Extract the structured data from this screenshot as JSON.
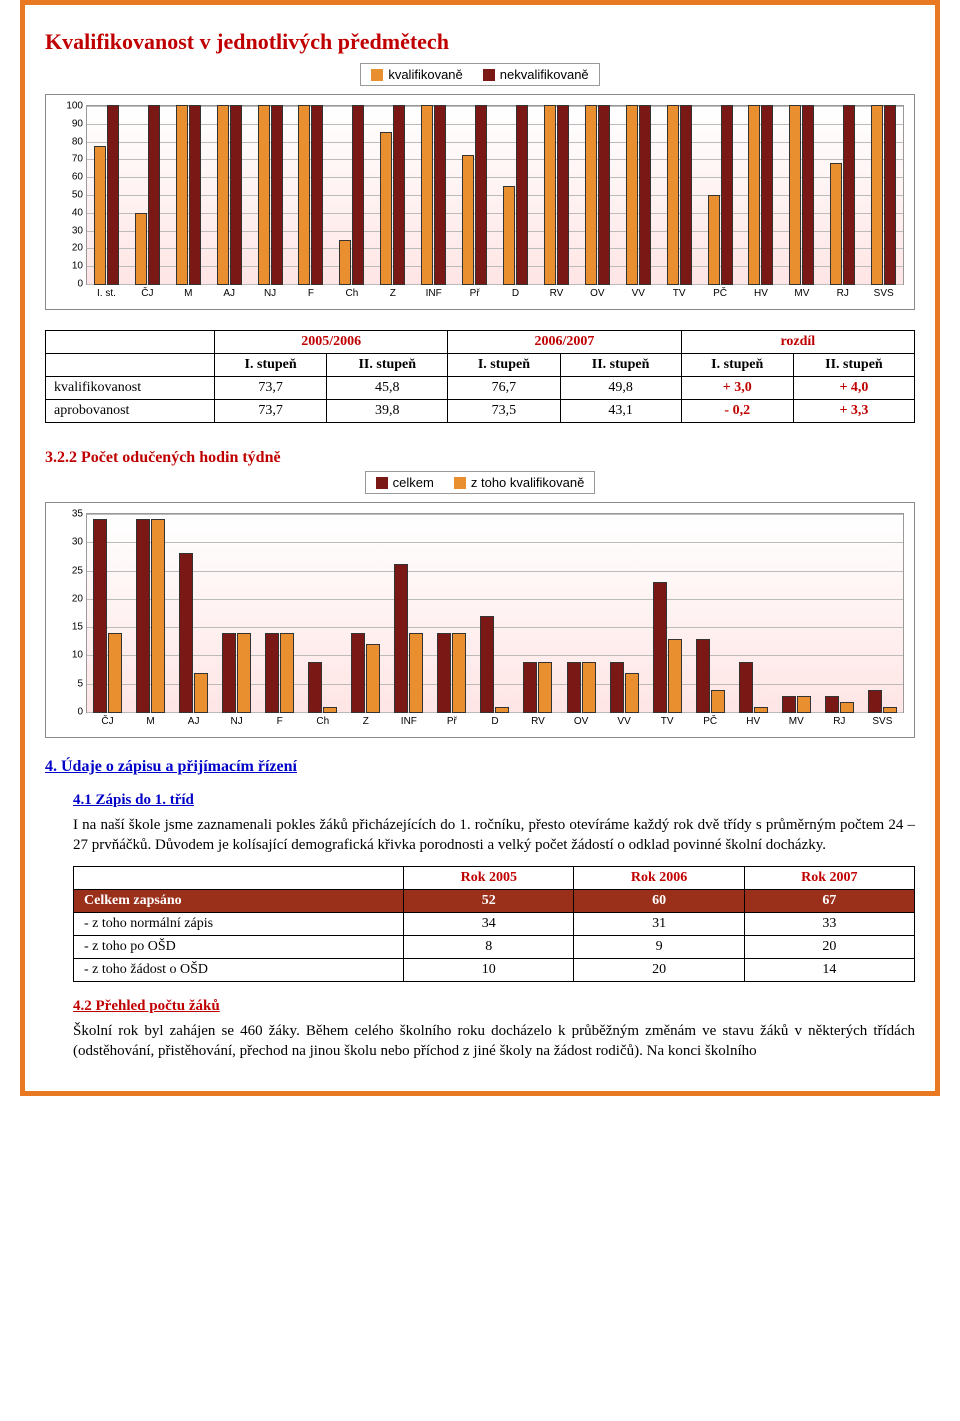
{
  "colors": {
    "orange": "#e98f2f",
    "maroon": "#7a1815",
    "frame": "#e87822"
  },
  "chart1": {
    "title": "Kvalifikovanost v jednotlivých předmětech",
    "legend": [
      "kvalifikovaně",
      "nekvalifikovaně"
    ],
    "legend_colors": [
      "#e98f2f",
      "#7a1815"
    ],
    "type": "bar-grouped",
    "ymax": 100,
    "ytick_step": 10,
    "categories": [
      "I. st.",
      "ČJ",
      "M",
      "AJ",
      "NJ",
      "F",
      "Ch",
      "Z",
      "INF",
      "Př",
      "D",
      "RV",
      "OV",
      "VV",
      "TV",
      "PČ",
      "HV",
      "MV",
      "RJ",
      "SVS"
    ],
    "series": [
      {
        "name": "kvalifikovaně",
        "color": "#e98f2f",
        "values": [
          77,
          40,
          100,
          100,
          100,
          100,
          25,
          85,
          100,
          72,
          55,
          100,
          100,
          100,
          100,
          50,
          100,
          100,
          68,
          100
        ]
      },
      {
        "name": "nekvalifikovaně",
        "color": "#7a1815",
        "values": [
          100,
          100,
          100,
          100,
          100,
          100,
          100,
          100,
          100,
          100,
          100,
          100,
          100,
          100,
          100,
          100,
          100,
          100,
          100,
          100
        ]
      }
    ],
    "axis_fontsize": 10,
    "background_gradient": [
      "#ffffff",
      "#ffe5e5"
    ]
  },
  "table1": {
    "col_headers_top": [
      "",
      "2005/2006",
      "",
      "2006/2007",
      "",
      "rozdíl",
      ""
    ],
    "col_headers_sub": [
      "",
      "I. stupeň",
      "II. stupeň",
      "I. stupeň",
      "II. stupeň",
      "I. stupeň",
      "II. stupeň"
    ],
    "rows": [
      {
        "label": "kvalifikovanost",
        "cells": [
          "73,7",
          "45,8",
          "76,7",
          "49,8",
          "+ 3,0",
          "+ 4,0"
        ]
      },
      {
        "label": "aprobovanost",
        "cells": [
          "73,7",
          "39,8",
          "73,5",
          "43,1",
          "- 0,2",
          "+ 3,3"
        ]
      }
    ]
  },
  "chart2": {
    "title": "3.2.2  Počet odučených hodin týdně",
    "legend": [
      "celkem",
      "z toho kvalifikovaně"
    ],
    "legend_colors": [
      "#7a1815",
      "#e98f2f"
    ],
    "type": "bar-grouped",
    "ymax": 35,
    "ytick_step": 5,
    "categories": [
      "ČJ",
      "M",
      "AJ",
      "NJ",
      "F",
      "Ch",
      "Z",
      "INF",
      "Př",
      "D",
      "RV",
      "OV",
      "VV",
      "TV",
      "PČ",
      "HV",
      "MV",
      "RJ",
      "SVS"
    ],
    "series": [
      {
        "name": "celkem",
        "color": "#7a1815",
        "values": [
          34,
          34,
          28,
          14,
          14,
          9,
          14,
          26,
          14,
          17,
          9,
          9,
          9,
          23,
          13,
          9,
          3,
          3,
          4
        ]
      },
      {
        "name": "z toho kvalifikovaně",
        "color": "#e98f2f",
        "values": [
          14,
          34,
          7,
          14,
          14,
          1,
          12,
          14,
          14,
          1,
          9,
          9,
          7,
          13,
          4,
          1,
          3,
          2,
          1
        ]
      }
    ],
    "axis_fontsize": 10,
    "background_gradient": [
      "#ffffff",
      "#ffe5e5"
    ]
  },
  "section4": {
    "heading": "4. Údaje o zápisu a přijímacím řízení",
    "h41": "4.1 Zápis do 1. tříd",
    "p41": "I na naší škole jsme zaznamenali pokles žáků přicházejících do 1. ročníku, přesto otevíráme každý rok dvě třídy s průměrným počtem 24 – 27 prvňáčků. Důvodem je kolísající demografická křivka porodnosti a velký počet žádostí o odklad povinné školní docházky.",
    "rok_headers": [
      "",
      "Rok 2005",
      "Rok 2006",
      "Rok 2007"
    ],
    "rok_rows": [
      {
        "label": "Celkem zapsáno",
        "cells": [
          "52",
          "60",
          "67"
        ],
        "maroon": true
      },
      {
        "label": "- z toho normální zápis",
        "cells": [
          "34",
          "31",
          "33"
        ]
      },
      {
        "label": "- z toho po OŠD",
        "cells": [
          "8",
          "9",
          "20"
        ]
      },
      {
        "label": "- z toho žádost o OŠD",
        "cells": [
          "10",
          "20",
          "14"
        ]
      }
    ],
    "h42": "4.2 Přehled počtu žáků",
    "p42": "Školní rok byl zahájen se 460 žáky. Během celého školního roku docházelo k průběžným změnám ve stavu žáků v některých třídách (odstěhování, přistěhování, přechod na jinou školu nebo příchod z jiné školy na žádost rodičů). Na konci školního"
  }
}
